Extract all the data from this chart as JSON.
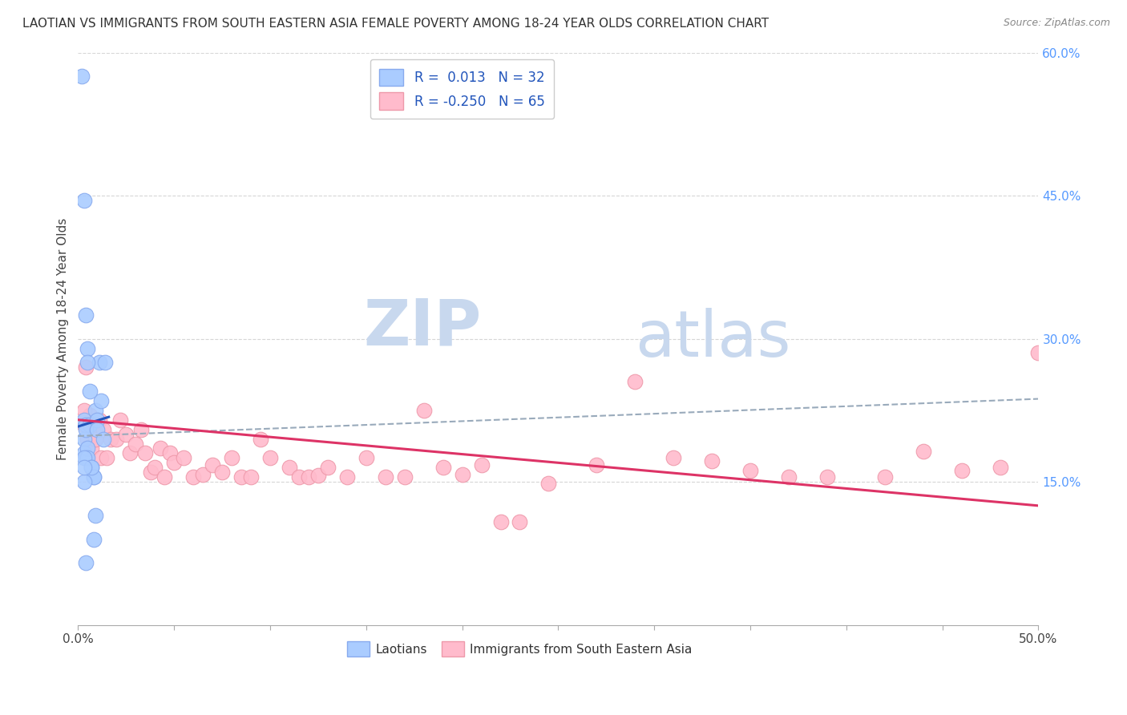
{
  "title": "LAOTIAN VS IMMIGRANTS FROM SOUTH EASTERN ASIA FEMALE POVERTY AMONG 18-24 YEAR OLDS CORRELATION CHART",
  "source": "Source: ZipAtlas.com",
  "ylabel": "Female Poverty Among 18-24 Year Olds",
  "xlim": [
    0,
    0.5
  ],
  "ylim": [
    0,
    0.6
  ],
  "grid_color": "#cccccc",
  "background_color": "#ffffff",
  "series1_label": "Laotians",
  "series2_label": "Immigrants from South Eastern Asia",
  "series1_color": "#aaccff",
  "series2_color": "#ffbbcc",
  "series1_edge": "#88aaee",
  "series2_edge": "#ee99aa",
  "series1_R": "0.013",
  "series1_N": "32",
  "series2_R": "-0.250",
  "series2_N": "65",
  "watermark_zip": "ZIP",
  "watermark_atlas": "atlas",
  "watermark_color": "#c8d8ee",
  "blue_line_color": "#2255bb",
  "pink_line_color": "#dd3366",
  "dash_line_color": "#99aabb",
  "series1_x": [
    0.003,
    0.004,
    0.003,
    0.003,
    0.004,
    0.005,
    0.005,
    0.006,
    0.004,
    0.003,
    0.007,
    0.008,
    0.008,
    0.009,
    0.01,
    0.01,
    0.011,
    0.013,
    0.012,
    0.007,
    0.008,
    0.009,
    0.003,
    0.003,
    0.002,
    0.003,
    0.004,
    0.005,
    0.005,
    0.006,
    0.014,
    0.004
  ],
  "series1_y": [
    0.215,
    0.21,
    0.195,
    0.18,
    0.175,
    0.185,
    0.175,
    0.21,
    0.205,
    0.175,
    0.165,
    0.155,
    0.155,
    0.225,
    0.215,
    0.205,
    0.275,
    0.195,
    0.235,
    0.165,
    0.09,
    0.115,
    0.15,
    0.165,
    0.575,
    0.445,
    0.325,
    0.29,
    0.275,
    0.245,
    0.275,
    0.065
  ],
  "series2_x": [
    0.003,
    0.004,
    0.005,
    0.006,
    0.007,
    0.008,
    0.009,
    0.011,
    0.012,
    0.013,
    0.015,
    0.017,
    0.02,
    0.022,
    0.025,
    0.027,
    0.03,
    0.033,
    0.035,
    0.038,
    0.04,
    0.043,
    0.045,
    0.048,
    0.05,
    0.055,
    0.06,
    0.065,
    0.07,
    0.075,
    0.08,
    0.085,
    0.09,
    0.095,
    0.1,
    0.11,
    0.115,
    0.12,
    0.125,
    0.13,
    0.14,
    0.15,
    0.16,
    0.17,
    0.18,
    0.19,
    0.2,
    0.21,
    0.22,
    0.23,
    0.245,
    0.27,
    0.29,
    0.31,
    0.33,
    0.35,
    0.37,
    0.39,
    0.42,
    0.44,
    0.46,
    0.48,
    0.5,
    0.003,
    0.004
  ],
  "series2_y": [
    0.21,
    0.215,
    0.195,
    0.22,
    0.185,
    0.21,
    0.195,
    0.215,
    0.175,
    0.205,
    0.175,
    0.195,
    0.195,
    0.215,
    0.2,
    0.18,
    0.19,
    0.205,
    0.18,
    0.16,
    0.165,
    0.185,
    0.155,
    0.18,
    0.17,
    0.175,
    0.155,
    0.158,
    0.168,
    0.16,
    0.175,
    0.155,
    0.155,
    0.195,
    0.175,
    0.165,
    0.155,
    0.155,
    0.157,
    0.165,
    0.155,
    0.175,
    0.155,
    0.155,
    0.225,
    0.165,
    0.158,
    0.168,
    0.108,
    0.108,
    0.148,
    0.168,
    0.255,
    0.175,
    0.172,
    0.162,
    0.155,
    0.155,
    0.155,
    0.182,
    0.162,
    0.165,
    0.285,
    0.225,
    0.27
  ],
  "blue_line_x": [
    0.0,
    0.016
  ],
  "blue_line_y": [
    0.208,
    0.218
  ],
  "pink_line_x": [
    0.0,
    0.5
  ],
  "pink_line_y": [
    0.215,
    0.125
  ],
  "dash_line_x": [
    0.0,
    0.5
  ],
  "dash_line_y": [
    0.198,
    0.237
  ]
}
